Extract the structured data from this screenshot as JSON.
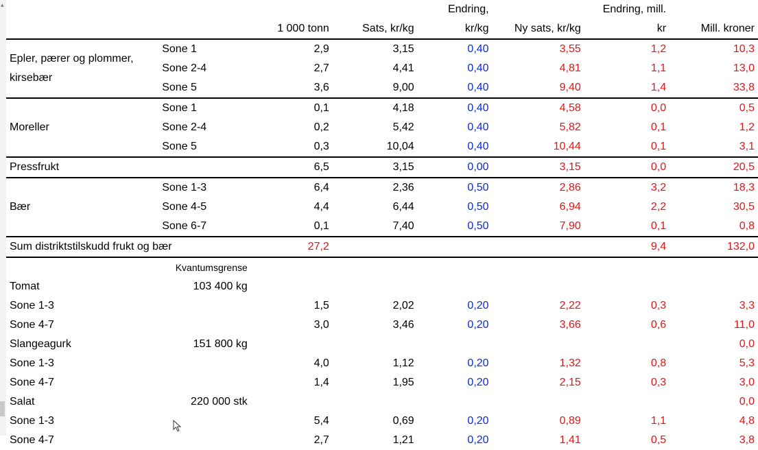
{
  "header": {
    "row1": [
      "",
      "",
      "",
      "",
      "Endring,",
      "",
      "Endring, mill.",
      ""
    ],
    "row2": [
      "",
      "",
      "1 000 tonn",
      "Sats, kr/kg",
      "kr/kg",
      "Ny sats, kr/kg",
      "kr",
      "Mill. kroner"
    ]
  },
  "fruit_groups": [
    {
      "label": "Epler, pærer og plommer, kirsebær",
      "rows": [
        {
          "zone": "Sone  1",
          "tonn": "2,9",
          "sats": "3,15",
          "endring": "0,40",
          "ny": "3,55",
          "endring_mill": "1,2",
          "mill": "10,3"
        },
        {
          "zone": "Sone  2-4",
          "tonn": "2,7",
          "sats": "4,41",
          "endring": "0,40",
          "ny": "4,81",
          "endring_mill": "1,1",
          "mill": "13,0"
        },
        {
          "zone": "Sone 5",
          "tonn": "3,6",
          "sats": "9,00",
          "endring": "0,40",
          "ny": "9,40",
          "endring_mill": "1,4",
          "mill": "33,8"
        }
      ]
    },
    {
      "label": "Moreller",
      "rows": [
        {
          "zone": "Sone  1",
          "tonn": "0,1",
          "sats": "4,18",
          "endring": "0,40",
          "ny": "4,58",
          "endring_mill": "0,0",
          "mill": "0,5"
        },
        {
          "zone": "Sone  2-4",
          "tonn": "0,2",
          "sats": "5,42",
          "endring": "0,40",
          "ny": "5,82",
          "endring_mill": "0,1",
          "mill": "1,2"
        },
        {
          "zone": "Sone 5",
          "tonn": "0,3",
          "sats": "10,04",
          "endring": "0,40",
          "ny": "10,44",
          "endring_mill": "0,1",
          "mill": "3,1"
        }
      ]
    }
  ],
  "pressfrukt": {
    "label": "Pressfrukt",
    "tonn": "6,5",
    "sats": "3,15",
    "endring": "0,00",
    "ny": "3,15",
    "endring_mill": "0,0",
    "mill": "20,5"
  },
  "baer": {
    "label": "Bær",
    "rows": [
      {
        "zone": "Sone  1-3",
        "tonn": "6,4",
        "sats": "2,36",
        "endring": "0,50",
        "ny": "2,86",
        "endring_mill": "3,2",
        "mill": "18,3"
      },
      {
        "zone": "Sone  4-5",
        "tonn": "4,4",
        "sats": "6,44",
        "endring": "0,50",
        "ny": "6,94",
        "endring_mill": "2,2",
        "mill": "30,5"
      },
      {
        "zone": "Sone 6-7",
        "tonn": "0,1",
        "sats": "7,40",
        "endring": "0,50",
        "ny": "7,90",
        "endring_mill": "0,1",
        "mill": "0,8"
      }
    ]
  },
  "sum": {
    "label": "Sum distriktstilskudd frukt og bær",
    "tonn": "27,2",
    "endring_mill": "9,4",
    "mill": "132,0"
  },
  "kvantum_header": "Kvantumsgrense",
  "veg": [
    {
      "product": "Tomat",
      "limit": "103 400 kg",
      "rows": [
        {
          "zone": "Sone  1-3",
          "tonn": "1,5",
          "sats": "2,02",
          "endring": "0,20",
          "ny": "2,22",
          "endring_mill": "0,3",
          "mill": "3,3"
        },
        {
          "zone": "Sone  4-7",
          "tonn": "3,0",
          "sats": "3,46",
          "endring": "0,20",
          "ny": "3,66",
          "endring_mill": "0,6",
          "mill": "11,0"
        }
      ]
    },
    {
      "product": "Slangeagurk",
      "limit": "151 800 kg",
      "mill": "0,0",
      "rows": [
        {
          "zone": "Sone  1-3",
          "tonn": "4,0",
          "sats": "1,12",
          "endring": "0,20",
          "ny": "1,32",
          "endring_mill": "0,8",
          "mill": "5,3"
        },
        {
          "zone": "Sone  4-7",
          "tonn": "1,4",
          "sats": "1,95",
          "endring": "0,20",
          "ny": "2,15",
          "endring_mill": "0,3",
          "mill": "3,0"
        }
      ]
    },
    {
      "product": "Salat",
      "limit": "220 000 stk",
      "mill": "0,0",
      "rows": [
        {
          "zone": "Sone  1-3",
          "tonn": "5,4",
          "sats": "0,69",
          "endring": "0,20",
          "ny": "0,89",
          "endring_mill": "1,1",
          "mill": "4,8"
        },
        {
          "zone": "Sone  4-7",
          "tonn": "2,7",
          "sats": "1,21",
          "endring": "0,20",
          "ny": "1,41",
          "endring_mill": "0,5",
          "mill": "3,8"
        }
      ]
    }
  ],
  "colors": {
    "change": "#0a2bd8",
    "new": "#ee1111"
  },
  "icons": {
    "cursor": "mouse-pointer-icon"
  }
}
